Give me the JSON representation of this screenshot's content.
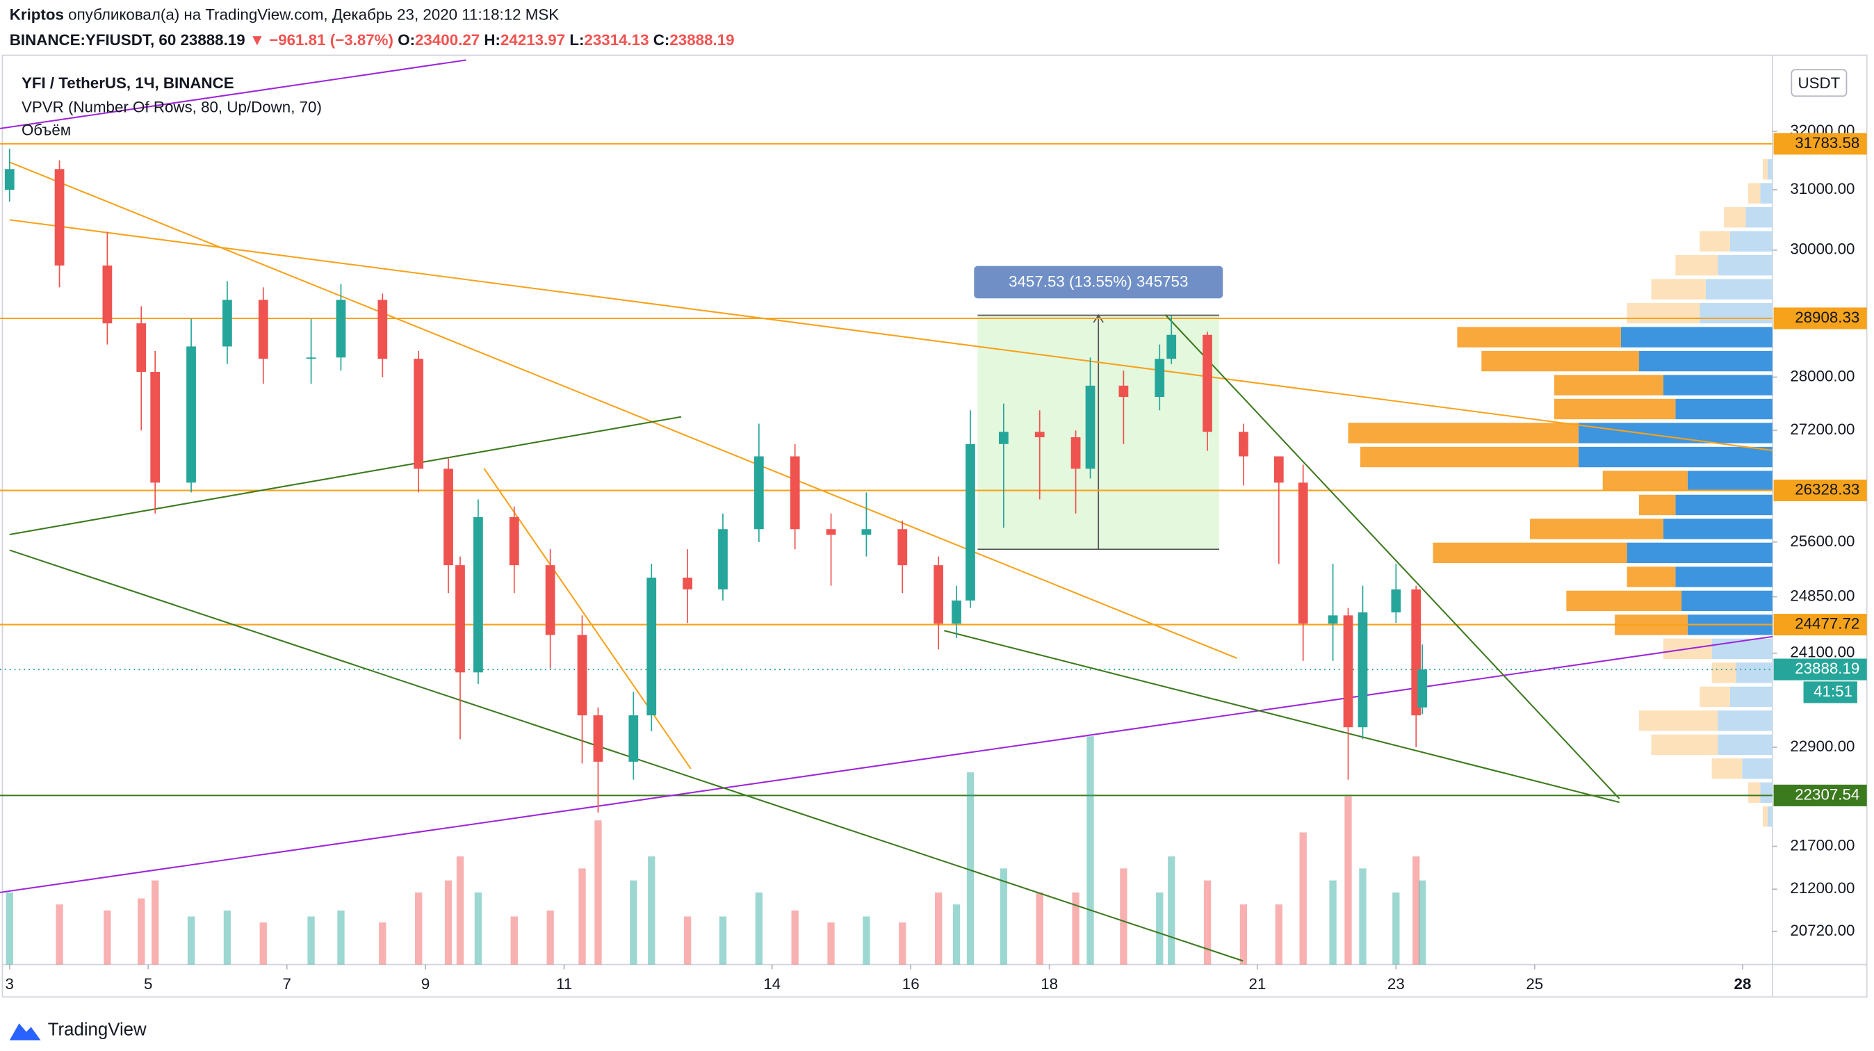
{
  "header": {
    "author": "Kriptos",
    "published": "опубликовал(а) на TradingView.com, Декабрь 23, 2020 11:18:12 MSK",
    "symbol": "BINANCE:YFIUSDT, 60",
    "price": "23888.19",
    "change": "▼ −961.81 (−3.87%)",
    "ohlc": [
      {
        "key": "O:",
        "value": "23400.27"
      },
      {
        "key": "H:",
        "value": "24213.97"
      },
      {
        "key": "L:",
        "value": "23314.13"
      },
      {
        "key": "C:",
        "value": "23888.19"
      }
    ]
  },
  "footer": {
    "brand": "TradingView"
  },
  "chart_data": {
    "type": "candlestick",
    "title": "YFI / TetherUS, 1Ч, BINANCE",
    "indicators": [
      "VPVR (Number Of Rows, 80, Up/Down, 70)",
      "Объём"
    ],
    "currency": "USDT",
    "countdown": "41:51",
    "colors": {
      "up": "#26a69a",
      "down": "#ef5350"
    },
    "x": [
      3.0,
      3.72,
      4.41,
      4.9,
      5.1,
      5.62,
      6.14,
      6.66,
      7.35,
      7.78,
      8.38,
      8.9,
      9.33,
      9.5,
      9.76,
      10.28,
      10.8,
      11.26,
      11.49,
      12.0,
      12.26,
      12.78,
      13.29,
      13.81,
      14.33,
      14.85,
      15.36,
      15.88,
      16.4,
      16.66,
      16.86,
      17.34,
      17.86,
      18.38,
      18.59,
      19.07,
      19.59,
      19.76,
      20.28,
      20.8,
      21.31,
      21.66,
      22.09,
      22.31,
      22.52,
      23.0,
      23.29,
      23.38
    ],
    "open": [
      31000,
      31350,
      29750,
      28830,
      28080,
      26440,
      28470,
      29200,
      28280,
      28300,
      29200,
      28280,
      26640,
      25280,
      23850,
      25950,
      25280,
      24340,
      23300,
      22720,
      23300,
      25110,
      24950,
      25780,
      26820,
      25780,
      25700,
      25780,
      25280,
      24490,
      24800,
      27000,
      27180,
      27100,
      26640,
      27870,
      27700,
      28280,
      28650,
      27180,
      26820,
      26440,
      24490,
      24600,
      23150,
      24640,
      24950,
      23400.27
    ],
    "high": [
      31700,
      31500,
      30300,
      29100,
      28400,
      28900,
      29500,
      29400,
      28900,
      29450,
      29300,
      28400,
      26800,
      25400,
      26200,
      26100,
      25500,
      24600,
      23400,
      23600,
      25300,
      25500,
      26000,
      27300,
      27000,
      26000,
      26300,
      25900,
      25400,
      25000,
      27500,
      27600,
      27500,
      27200,
      28300,
      28100,
      28500,
      28950,
      28700,
      27300,
      26800,
      26700,
      25300,
      24700,
      25000,
      25300,
      25000,
      24213.97
    ],
    "low": [
      30800,
      29400,
      28500,
      27200,
      26000,
      26300,
      28200,
      27900,
      27900,
      28100,
      28000,
      26300,
      24900,
      23000,
      23700,
      24900,
      23900,
      22700,
      22100,
      22500,
      23100,
      24500,
      24800,
      25600,
      25500,
      25000,
      25400,
      24900,
      24150,
      24300,
      24700,
      25800,
      26200,
      26000,
      26500,
      27000,
      27500,
      28200,
      26900,
      26400,
      25300,
      24000,
      24000,
      22500,
      23000,
      24500,
      22900,
      23314.13
    ],
    "close": [
      31350,
      29750,
      28830,
      28080,
      26440,
      28470,
      29200,
      28280,
      28300,
      29200,
      28280,
      26640,
      25280,
      23850,
      25950,
      25280,
      24340,
      23300,
      22720,
      23300,
      25110,
      24950,
      25780,
      26820,
      25780,
      25700,
      25780,
      25280,
      24490,
      24800,
      27000,
      27180,
      27100,
      26640,
      27870,
      27700,
      28280,
      28650,
      27180,
      26820,
      26440,
      24490,
      24600,
      23150,
      24640,
      24950,
      23300,
      23888.19
    ],
    "volume": [
      60,
      50,
      45,
      55,
      70,
      40,
      45,
      35,
      40,
      45,
      35,
      60,
      70,
      90,
      60,
      40,
      45,
      80,
      120,
      70,
      90,
      40,
      40,
      60,
      45,
      35,
      40,
      35,
      60,
      50,
      160,
      80,
      60,
      60,
      190,
      80,
      60,
      90,
      70,
      50,
      50,
      110,
      70,
      140,
      80,
      60,
      90,
      70
    ],
    "xlim": [
      2.862,
      28.43
    ],
    "xticks": [
      3,
      5,
      7,
      9,
      11,
      14,
      16,
      18,
      21,
      23,
      25,
      28
    ],
    "ylim": [
      20350,
      33350
    ],
    "log_y": true,
    "grid": false,
    "yticks": [
      {
        "value": 32000,
        "label": "32000.00"
      },
      {
        "value": 31000,
        "label": "31000.00"
      },
      {
        "value": 30000,
        "label": "30000.00"
      },
      {
        "value": 28000,
        "label": "28000.00"
      },
      {
        "value": 27200,
        "label": "27200.00"
      },
      {
        "value": 25600,
        "label": "25600.00"
      },
      {
        "value": 24850,
        "label": "24850.00"
      },
      {
        "value": 24100,
        "label": "24100.00"
      },
      {
        "value": 22900,
        "label": "22900.00"
      },
      {
        "value": 21700,
        "label": "21700.00"
      },
      {
        "value": 21200,
        "label": "21200.00"
      },
      {
        "value": 20720,
        "label": "20720.00"
      }
    ],
    "levels": [
      {
        "value": 31783.58,
        "color": "#f7a21b",
        "text_color": "#131722",
        "style": "solid"
      },
      {
        "value": 28908.33,
        "color": "#f7a21b",
        "text_color": "#131722",
        "style": "solid"
      },
      {
        "value": 26328.33,
        "color": "#f7a21b",
        "text_color": "#131722",
        "style": "solid"
      },
      {
        "value": 24477.72,
        "color": "#f7a21b",
        "text_color": "#131722",
        "style": "solid"
      },
      {
        "value": 23888.19,
        "color": "#26a69a",
        "text_color": "#ffffff",
        "style": "dotted"
      },
      {
        "value": 22307.54,
        "color": "#3c7a1e",
        "text_color": "#ffffff",
        "style": "solid"
      }
    ],
    "measure": {
      "label": "3457.53 (13.55%) 345753",
      "x": [
        16.965,
        20.45
      ],
      "y": [
        25500,
        28957.53
      ]
    },
    "profile": {
      "price": [
        31345,
        30940,
        30539,
        30144,
        29754,
        29369,
        28989,
        28614,
        28244,
        27878,
        27518,
        27162,
        26810,
        26464,
        26121,
        25783,
        25450,
        25120,
        24795,
        24474,
        24158,
        23845,
        23536,
        23232,
        22931,
        22635,
        22342,
        22053
      ],
      "up": [
        4,
        10,
        22,
        35,
        45,
        55,
        60,
        125,
        110,
        90,
        80,
        160,
        160,
        70,
        80,
        90,
        120,
        80,
        75,
        70,
        50,
        30,
        35,
        45,
        45,
        25,
        10,
        4
      ],
      "down": [
        4,
        10,
        18,
        25,
        35,
        45,
        60,
        135,
        130,
        90,
        100,
        190,
        180,
        70,
        30,
        110,
        160,
        40,
        95,
        60,
        40,
        20,
        25,
        65,
        55,
        25,
        10,
        4
      ],
      "value_area": [
        24400,
        28950
      ],
      "colors": {
        "up": "#3d95e0",
        "down": "#f9a83b",
        "up_pale": "#bfdcf3",
        "down_pale": "#fde1ba"
      }
    }
  }
}
